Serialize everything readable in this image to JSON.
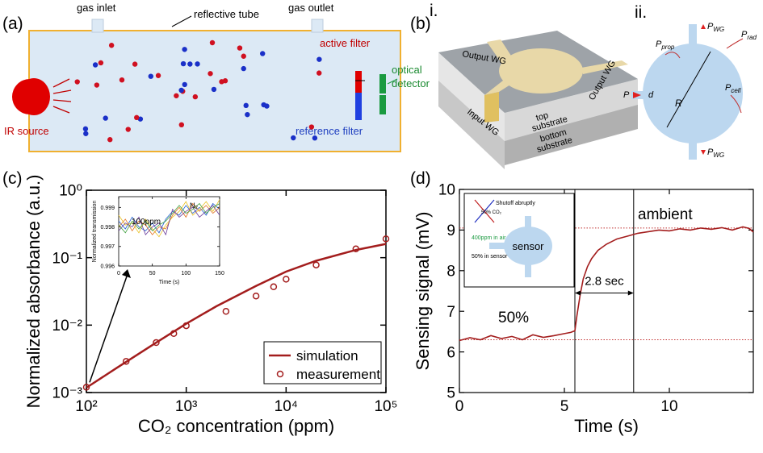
{
  "panel_labels": [
    "(a)",
    "(b)",
    "(c)",
    "(d)"
  ],
  "diagram_a": {
    "gas_inlet": "gas inlet",
    "reflective_tube": "reflective tube",
    "gas_outlet": "gas outlet",
    "active_filter": "active filter",
    "optical_detector": [
      "optical",
      "detector"
    ],
    "ir_source": "IR source",
    "reference_filter": "reference filter"
  },
  "diagram_b": {
    "part_i": "i.",
    "part_ii": "ii.",
    "output_wg_top": "Output WG",
    "output_wg_side": "Output WG",
    "input_wg": "Input WG",
    "top_substrate": [
      "top",
      "substrate"
    ],
    "bottom_substrate": [
      "bottom",
      "substrate"
    ],
    "p_prop": {
      "text": "P",
      "sub": "prop"
    },
    "p_rad": {
      "text": "P",
      "sub": "rad"
    },
    "p_wg_top": {
      "text": "P",
      "sub": "WG"
    },
    "p_wg_bottom": {
      "text": "P",
      "sub": "WG"
    },
    "p_cell": {
      "text": "P",
      "sub": "cell"
    },
    "p_in": "P",
    "d": "d",
    "r": "R"
  },
  "chart_data": [
    {
      "type": "line",
      "xlabel": "CO₂ concentration (ppm)",
      "ylabel": "Normalized absorbance (a.u.)",
      "xscale": "log",
      "yscale": "log",
      "xlim": [
        100,
        100000
      ],
      "ylim": [
        0.001,
        1
      ],
      "xticks": [
        {
          "value": 100,
          "label": "10²"
        },
        {
          "value": 1000,
          "label": "10³"
        },
        {
          "value": 10000,
          "label": "10⁴"
        },
        {
          "value": 100000,
          "label": "10⁵"
        }
      ],
      "yticks": [
        {
          "value": 0.001,
          "label": "10⁻³"
        },
        {
          "value": 0.01,
          "label": "10⁻²"
        },
        {
          "value": 0.1,
          "label": "10⁻¹"
        },
        {
          "value": 1,
          "label": "10⁰"
        }
      ],
      "legend": "lower right",
      "series": [
        {
          "name": "simulation",
          "mode": "lines",
          "color": "#a31d1d",
          "x": [
            100,
            200,
            500,
            1000,
            2000,
            5000,
            10000,
            20000,
            50000,
            100000
          ],
          "values": [
            0.00118,
            0.0023,
            0.0055,
            0.0105,
            0.019,
            0.038,
            0.062,
            0.09,
            0.13,
            0.16
          ]
        },
        {
          "name": "measurement",
          "mode": "markers",
          "color": "#a31d1d",
          "x": [
            100,
            250,
            500,
            750,
            1000,
            2500,
            5000,
            7500,
            10000,
            20000,
            50000,
            100000
          ],
          "values": [
            0.0012,
            0.0029,
            0.0055,
            0.0075,
            0.0098,
            0.016,
            0.027,
            0.037,
            0.048,
            0.078,
            0.135,
            0.19
          ]
        }
      ]
    },
    {
      "type": "line",
      "xlabel": "Time (s)",
      "ylabel": "Normalized transmission",
      "annotations": [
        "100ppm",
        "N₂"
      ],
      "xlim": [
        0,
        150
      ],
      "ylim": [
        0.996,
        0.99955
      ],
      "xticks": [
        0,
        50,
        100,
        150
      ],
      "yticks": [
        0.996,
        0.997,
        0.998,
        0.999
      ],
      "x": [
        0,
        10,
        20,
        30,
        40,
        50,
        60,
        70,
        80,
        90,
        100,
        110,
        120,
        130,
        140,
        150
      ],
      "series": [
        {
          "color": "#1f5fd0",
          "values": [
            0.9983,
            0.9979,
            0.9985,
            0.998,
            0.9978,
            0.9982,
            0.9977,
            0.9984,
            0.9988,
            0.9986,
            0.9991,
            0.9987,
            0.999,
            0.9986,
            0.9992,
            0.9989
          ]
        },
        {
          "color": "#e07020",
          "values": [
            0.998,
            0.9984,
            0.9978,
            0.9983,
            0.9981,
            0.9976,
            0.998,
            0.9979,
            0.9986,
            0.999,
            0.9985,
            0.9992,
            0.9988,
            0.9991,
            0.9987,
            0.999
          ]
        },
        {
          "color": "#e8c020",
          "values": [
            0.9986,
            0.9981,
            0.9982,
            0.9977,
            0.9984,
            0.9979,
            0.9975,
            0.9981,
            0.9985,
            0.9988,
            0.9993,
            0.9986,
            0.9989,
            0.9993,
            0.9988,
            0.9994
          ]
        },
        {
          "color": "#6a3a9a",
          "values": [
            0.9978,
            0.9982,
            0.998,
            0.9985,
            0.9976,
            0.998,
            0.9982,
            0.9976,
            0.9989,
            0.9985,
            0.9988,
            0.999,
            0.9985,
            0.9988,
            0.9991,
            0.9986
          ]
        },
        {
          "color": "#40a040",
          "values": [
            0.9981,
            0.9977,
            0.9983,
            0.9979,
            0.9983,
            0.9978,
            0.9981,
            0.9983,
            0.9987,
            0.9991,
            0.9987,
            0.9989,
            0.9992,
            0.9987,
            0.999,
            0.9992
          ]
        }
      ]
    },
    {
      "type": "line",
      "xlabel": "Time (s)",
      "ylabel": "Sensing signal (mV)",
      "annotations": [
        "50%",
        "ambient",
        "2.8 sec"
      ],
      "inset_labels": [
        "Shutoff abruptly",
        "50% CO₂",
        "400ppm in air",
        "50% in sensor",
        "sensor"
      ],
      "xlim": [
        0,
        14
      ],
      "ylim": [
        5,
        10
      ],
      "xticks": [
        0,
        5,
        10
      ],
      "yticks": [
        5,
        6,
        7,
        8,
        9,
        10
      ],
      "vlines": [
        5.5,
        8.3
      ],
      "hlines": [
        6.3,
        9.05
      ],
      "series": [
        {
          "mode": "lines",
          "color": "#a31d1d",
          "x": [
            0,
            0.5,
            1,
            1.5,
            2,
            2.5,
            3,
            3.5,
            4,
            4.5,
            5,
            5.3,
            5.5,
            5.6,
            5.75,
            5.9,
            6.1,
            6.3,
            6.6,
            7,
            7.5,
            8,
            8.5,
            9,
            9.5,
            10,
            10.5,
            11,
            11.5,
            12,
            12.5,
            13,
            13.5,
            13.8,
            14
          ],
          "values": [
            6.28,
            6.35,
            6.3,
            6.4,
            6.33,
            6.38,
            6.3,
            6.42,
            6.36,
            6.4,
            6.45,
            6.48,
            6.52,
            6.9,
            7.4,
            7.8,
            8.1,
            8.3,
            8.5,
            8.65,
            8.78,
            8.85,
            8.92,
            8.96,
            9.0,
            8.98,
            9.03,
            9.0,
            9.05,
            9.02,
            9.06,
            9.0,
            9.08,
            9.04,
            8.95
          ]
        }
      ]
    }
  ]
}
